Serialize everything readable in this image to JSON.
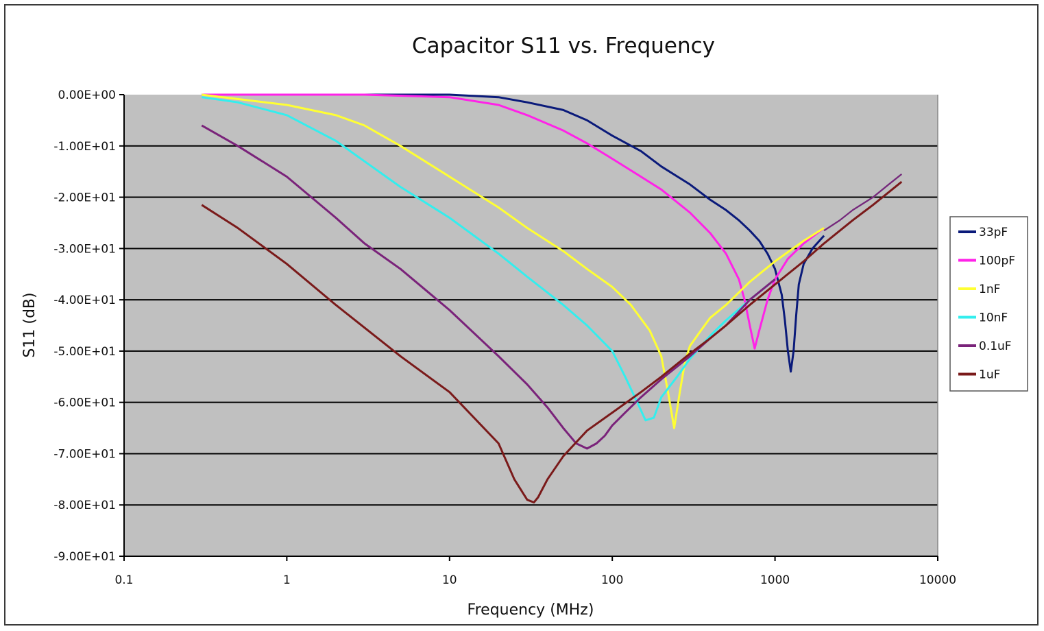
{
  "chart_data": {
    "type": "line",
    "title": "Capacitor S11 vs. Frequency",
    "xlabel": "Frequency (MHz)",
    "ylabel": "S11 (dB)",
    "x_scale": "log",
    "xlim": [
      0.1,
      10000
    ],
    "ylim": [
      -90,
      0
    ],
    "x_tick_values": [
      0.1,
      1,
      10,
      100,
      1000,
      10000
    ],
    "x_tick_labels": [
      "0.1",
      "1",
      "10",
      "100",
      "1000",
      "10000"
    ],
    "y_tick_values": [
      0,
      -10,
      -20,
      -30,
      -40,
      -50,
      -60,
      -70,
      -80,
      -90
    ],
    "y_tick_labels": [
      "0.00E+00",
      "-1.00E+01",
      "-2.00E+01",
      "-3.00E+01",
      "-4.00E+01",
      "-5.00E+01",
      "-6.00E+01",
      "-7.00E+01",
      "-8.00E+01",
      "-9.00E+01"
    ],
    "grid": "horizontal",
    "plot_background": "#c0c0c0",
    "legend_position": "right",
    "series": [
      {
        "name": "33pF",
        "color": "#0a1a7a",
        "x": [
          0.3,
          1,
          3,
          10,
          20,
          30,
          50,
          70,
          100,
          150,
          200,
          300,
          400,
          500,
          600,
          700,
          800,
          900,
          1000,
          1100,
          1150,
          1200,
          1250,
          1300,
          1350,
          1400,
          1500,
          1700,
          2000
        ],
        "y": [
          0,
          0,
          0,
          0,
          -0.5,
          -1.5,
          -3,
          -5,
          -8,
          -11,
          -14,
          -17.5,
          -20.5,
          -22.5,
          -24.5,
          -26.5,
          -28.5,
          -31,
          -34,
          -39,
          -44,
          -50,
          -54,
          -50,
          -43,
          -37,
          -33,
          -30,
          -27.5
        ]
      },
      {
        "name": "100pF",
        "color": "#ff22e8",
        "x": [
          0.3,
          1,
          3,
          10,
          20,
          30,
          50,
          70,
          100,
          150,
          200,
          300,
          400,
          500,
          600,
          650,
          700,
          750,
          800,
          900,
          1000,
          1200,
          1500,
          2000
        ],
        "y": [
          0,
          0,
          0,
          -0.5,
          -2,
          -4,
          -7,
          -9.5,
          -12.5,
          -16,
          -18.5,
          -23,
          -27,
          -31,
          -36,
          -40,
          -45,
          -49.5,
          -46,
          -40,
          -36,
          -32,
          -29,
          -26
        ]
      },
      {
        "name": "1nF",
        "color": "#ffff33",
        "x": [
          0.3,
          1,
          2,
          3,
          5,
          10,
          20,
          30,
          50,
          70,
          100,
          130,
          170,
          200,
          220,
          240,
          260,
          280,
          300,
          350,
          400,
          500,
          700,
          1000,
          1500,
          2000
        ],
        "y": [
          0,
          -2,
          -4,
          -6,
          -10,
          -16,
          -22,
          -26,
          -30.5,
          -34,
          -37.5,
          -41,
          -46,
          -51,
          -58,
          -65,
          -58,
          -52,
          -49,
          -46,
          -43.5,
          -41,
          -36.5,
          -32.5,
          -28.5,
          -26
        ]
      },
      {
        "name": "10nF",
        "color": "#33eeee",
        "x": [
          0.3,
          0.5,
          1,
          2,
          3,
          5,
          10,
          20,
          30,
          50,
          70,
          100,
          120,
          140,
          160,
          180,
          200,
          250,
          300,
          400,
          500,
          700,
          1000
        ],
        "y": [
          -0.5,
          -1.5,
          -4,
          -9,
          -13,
          -18,
          -24,
          -31,
          -35.5,
          -41,
          -45,
          -50,
          -55,
          -59.5,
          -63.5,
          -63,
          -59,
          -55,
          -51.5,
          -47,
          -44,
          -40,
          -36
        ]
      },
      {
        "name": "0.1uF",
        "color": "#7a237a",
        "x": [
          0.3,
          0.5,
          1,
          2,
          3,
          5,
          10,
          20,
          30,
          40,
          50,
          60,
          70,
          80,
          90,
          100,
          120,
          150,
          200,
          300,
          400,
          500,
          700,
          1000
        ],
        "y": [
          -6,
          -10,
          -16,
          -24,
          -29,
          -34,
          -42,
          -51,
          -56.5,
          -61,
          -65,
          -68,
          -69,
          -68,
          -66.5,
          -64.5,
          -62,
          -59,
          -55.5,
          -51,
          -47.5,
          -45,
          -40,
          -36
        ]
      },
      {
        "name": "1uF",
        "color": "#7a1a1a",
        "x": [
          0.3,
          0.5,
          1,
          2,
          5,
          10,
          20,
          25,
          30,
          33,
          35,
          40,
          50,
          70,
          100,
          150,
          200,
          300,
          400,
          500,
          700,
          1000,
          1500,
          2000,
          3000,
          4000,
          6000
        ],
        "y": [
          -21.5,
          -26,
          -33,
          -41,
          -51,
          -58,
          -68,
          -75,
          -79,
          -79.5,
          -78.5,
          -75,
          -70.5,
          -65.5,
          -62,
          -58,
          -55,
          -50.5,
          -47.5,
          -45,
          -41,
          -37,
          -32.5,
          -29,
          -24.5,
          -21.5,
          -17
        ]
      }
    ],
    "shared_tail": {
      "x": [
        2000,
        2500,
        3000,
        4000,
        5000,
        6000
      ],
      "y": [
        -26.5,
        -24.5,
        -22.5,
        -20,
        -17.5,
        -15.5
      ]
    }
  }
}
